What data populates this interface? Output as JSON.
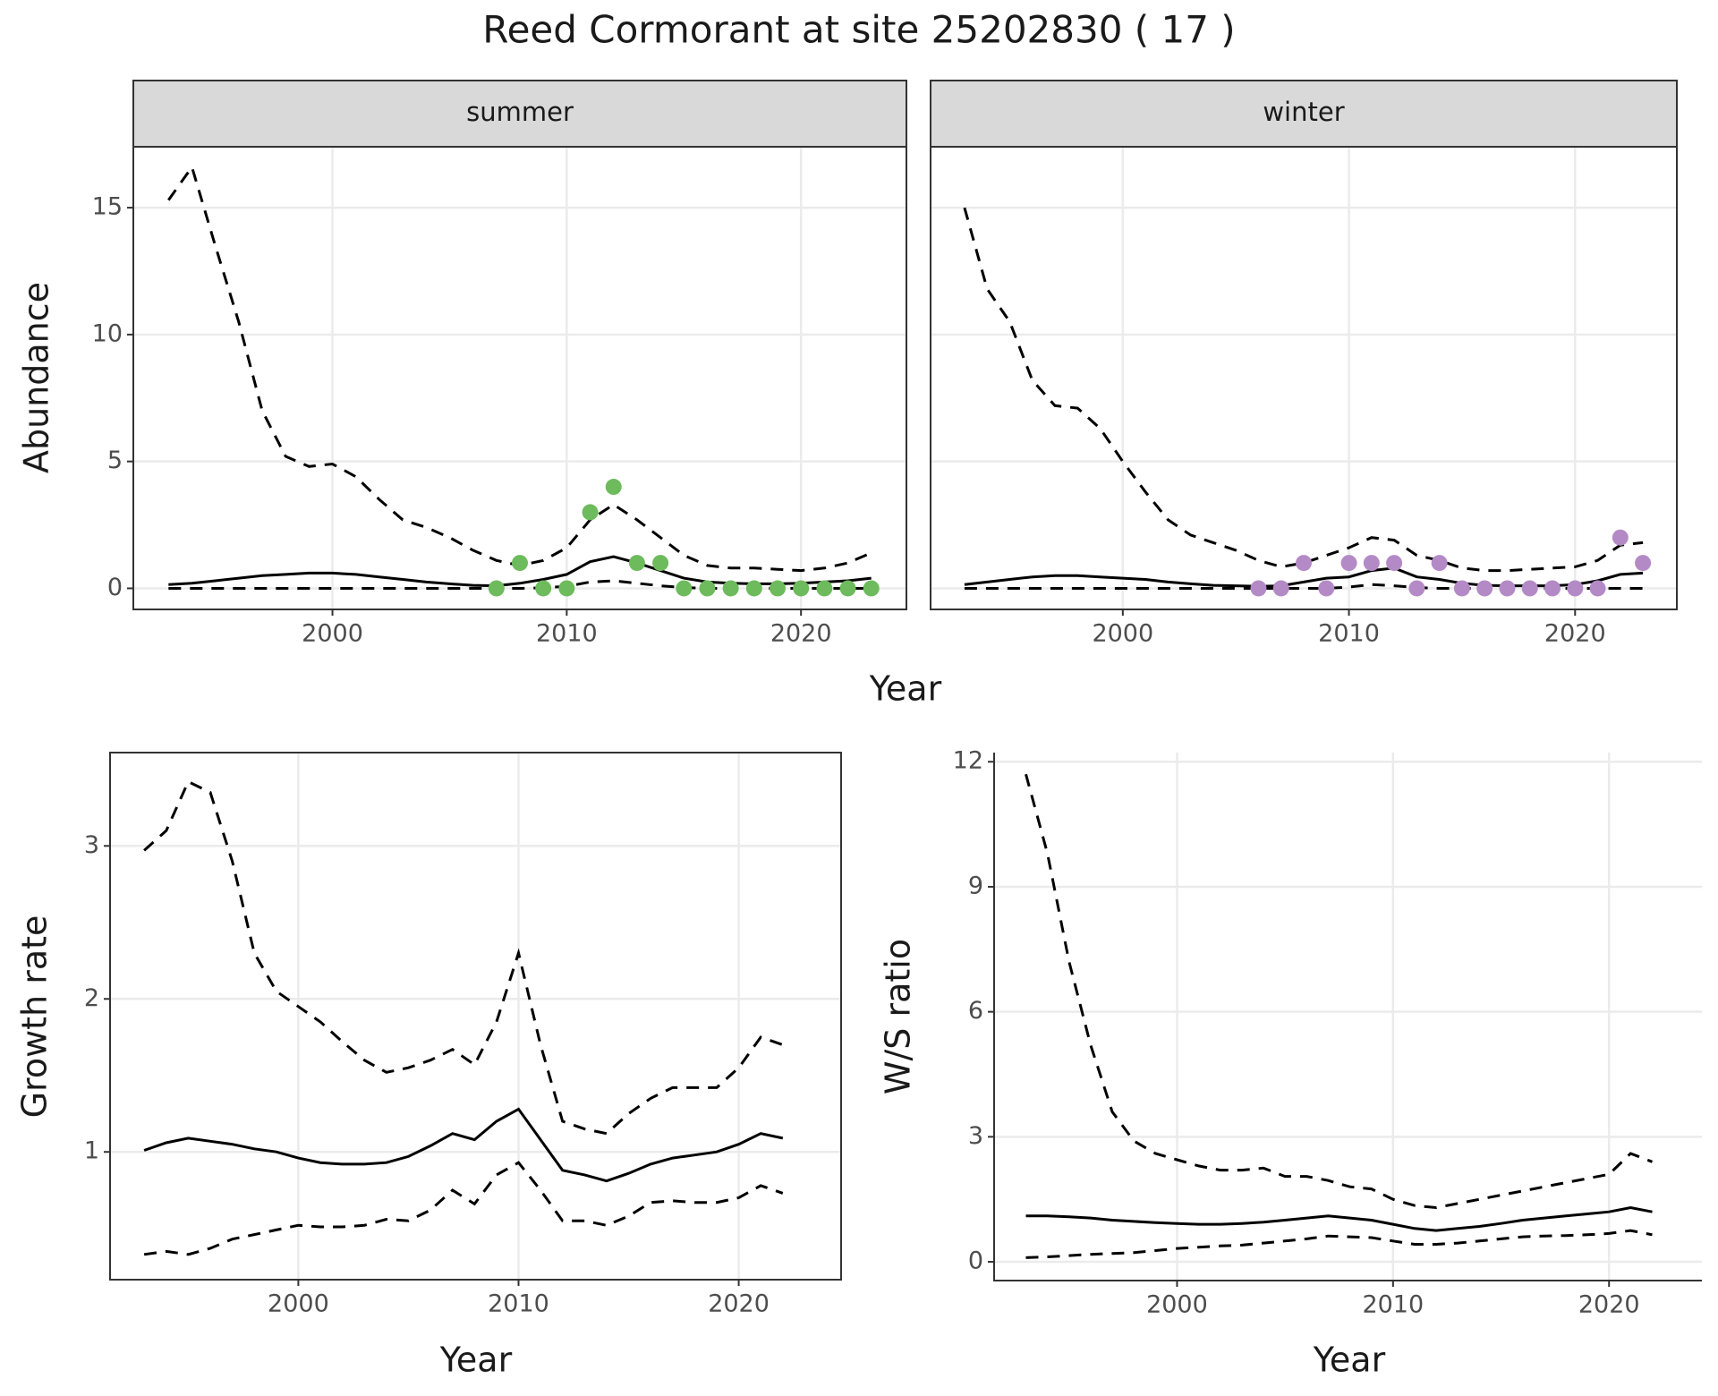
{
  "chart_data": [
    {
      "type": "line",
      "title": "Reed Cormorant at site 25202830 ( 17 )",
      "xlabel": "Year",
      "ylabel": "Abundance",
      "xlim": [
        1991.5,
        2024.5
      ],
      "ylim": [
        -0.83,
        17.4
      ],
      "xticks": [
        2000,
        2010,
        2020
      ],
      "yticks": [
        0,
        5,
        10,
        15
      ],
      "grid": true,
      "frame": "box",
      "facets": [
        {
          "strip": "summer",
          "x": [
            1993,
            1994,
            1995,
            1996,
            1997,
            1998,
            1999,
            2000,
            2001,
            2002,
            2003,
            2004,
            2005,
            2006,
            2007,
            2008,
            2009,
            2010,
            2011,
            2012,
            2013,
            2014,
            2015,
            2016,
            2017,
            2018,
            2019,
            2020,
            2021,
            2022,
            2023
          ],
          "series": [
            {
              "color": "#000000",
              "dash": true,
              "values": [
                15.3,
                16.6,
                13.5,
                10.5,
                7,
                5.2,
                4.8,
                4.9,
                4.4,
                3.5,
                2.7,
                2.4,
                2.0,
                1.5,
                1.1,
                0.9,
                1.1,
                1.6,
                2.7,
                3.3,
                2.7,
                2.0,
                1.3,
                0.9,
                0.8,
                0.8,
                0.75,
                0.7,
                0.8,
                1.0,
                1.4
              ]
            },
            {
              "color": "#000000",
              "dash": false,
              "values": [
                0.15,
                0.2,
                0.3,
                0.4,
                0.5,
                0.55,
                0.6,
                0.6,
                0.55,
                0.45,
                0.35,
                0.25,
                0.18,
                0.12,
                0.1,
                0.2,
                0.35,
                0.55,
                1.05,
                1.25,
                1.0,
                0.7,
                0.4,
                0.25,
                0.2,
                0.18,
                0.18,
                0.2,
                0.25,
                0.3,
                0.4
              ]
            },
            {
              "color": "#000000",
              "dash": true,
              "values": [
                0,
                0,
                0,
                0,
                0,
                0,
                0,
                0,
                0,
                0,
                0,
                0,
                0,
                0,
                0,
                0,
                0.02,
                0.08,
                0.25,
                0.3,
                0.2,
                0.1,
                0.03,
                0,
                0,
                0,
                0,
                0,
                0,
                0,
                0
              ]
            },
            {
              "type": "scatter",
              "color": "#6dbb5c",
              "values": [
                null,
                null,
                null,
                null,
                null,
                null,
                null,
                null,
                null,
                null,
                null,
                null,
                null,
                null,
                0,
                1,
                0,
                0,
                3,
                4,
                1,
                1,
                0,
                0,
                0,
                0,
                0,
                0,
                0,
                0,
                0
              ]
            }
          ]
        },
        {
          "strip": "winter",
          "x": [
            1993,
            1994,
            1995,
            1996,
            1997,
            1998,
            1999,
            2000,
            2001,
            2002,
            2003,
            2004,
            2005,
            2006,
            2007,
            2008,
            2009,
            2010,
            2011,
            2012,
            2013,
            2014,
            2015,
            2016,
            2017,
            2018,
            2019,
            2020,
            2021,
            2022,
            2023
          ],
          "series": [
            {
              "color": "#000000",
              "dash": true,
              "values": [
                15,
                11.8,
                10.5,
                8.2,
                7.2,
                7.1,
                6.3,
                5,
                3.8,
                2.7,
                2.1,
                1.8,
                1.5,
                1.1,
                0.85,
                1.0,
                1.3,
                1.6,
                2.0,
                1.9,
                1.3,
                1.1,
                0.8,
                0.7,
                0.7,
                0.75,
                0.8,
                0.85,
                1.1,
                1.7,
                1.8
              ]
            },
            {
              "color": "#000000",
              "dash": false,
              "values": [
                0.15,
                0.25,
                0.35,
                0.45,
                0.5,
                0.5,
                0.45,
                0.4,
                0.35,
                0.25,
                0.18,
                0.12,
                0.1,
                0.08,
                0.1,
                0.25,
                0.4,
                0.45,
                0.7,
                0.8,
                0.45,
                0.35,
                0.2,
                0.12,
                0.1,
                0.1,
                0.1,
                0.15,
                0.3,
                0.55,
                0.6
              ]
            },
            {
              "color": "#000000",
              "dash": true,
              "values": [
                0,
                0,
                0,
                0,
                0,
                0,
                0,
                0,
                0,
                0,
                0,
                0,
                0,
                0,
                0,
                0,
                0,
                0.05,
                0.15,
                0.1,
                0.03,
                0,
                0,
                0,
                0,
                0,
                0,
                0,
                0,
                0,
                0
              ]
            },
            {
              "type": "scatter",
              "color": "#b48ac6",
              "values": [
                null,
                null,
                null,
                null,
                null,
                null,
                null,
                null,
                null,
                null,
                null,
                null,
                null,
                0,
                0,
                1,
                0,
                1,
                1,
                1,
                0,
                1,
                0,
                0,
                0,
                0,
                0,
                0,
                0,
                2,
                1
              ]
            }
          ]
        }
      ]
    },
    {
      "type": "line",
      "xlabel": "Year",
      "ylabel": "Growth rate",
      "xlim": [
        1991.45,
        2024.65
      ],
      "ylim": [
        0.165,
        3.61
      ],
      "xticks": [
        2000,
        2010,
        2020
      ],
      "yticks": [
        1,
        2,
        3
      ],
      "grid": true,
      "frame": "box",
      "x": [
        1993,
        1994,
        1995,
        1996,
        1997,
        1998,
        1999,
        2000,
        2001,
        2002,
        2003,
        2004,
        2005,
        2006,
        2007,
        2008,
        2009,
        2010,
        2011,
        2012,
        2013,
        2014,
        2015,
        2016,
        2017,
        2018,
        2019,
        2020,
        2021,
        2022
      ],
      "series": [
        {
          "color": "#000000",
          "dash": true,
          "values": [
            2.97,
            3.1,
            3.42,
            3.35,
            2.9,
            2.3,
            2.05,
            1.95,
            1.85,
            1.72,
            1.6,
            1.52,
            1.55,
            1.6,
            1.67,
            1.57,
            1.85,
            2.3,
            1.7,
            1.2,
            1.15,
            1.12,
            1.25,
            1.35,
            1.42,
            1.42,
            1.42,
            1.55,
            1.75,
            1.7
          ]
        },
        {
          "color": "#000000",
          "dash": false,
          "values": [
            1.01,
            1.06,
            1.09,
            1.07,
            1.05,
            1.02,
            1.0,
            0.96,
            0.93,
            0.92,
            0.92,
            0.93,
            0.97,
            1.04,
            1.12,
            1.08,
            1.2,
            1.28,
            1.08,
            0.88,
            0.85,
            0.81,
            0.86,
            0.92,
            0.96,
            0.98,
            1.0,
            1.05,
            1.12,
            1.09
          ]
        },
        {
          "color": "#000000",
          "dash": true,
          "values": [
            0.33,
            0.35,
            0.33,
            0.37,
            0.43,
            0.46,
            0.49,
            0.52,
            0.51,
            0.51,
            0.52,
            0.56,
            0.55,
            0.62,
            0.75,
            0.66,
            0.85,
            0.93,
            0.75,
            0.55,
            0.55,
            0.52,
            0.58,
            0.67,
            0.68,
            0.67,
            0.67,
            0.7,
            0.78,
            0.73
          ]
        }
      ]
    },
    {
      "type": "line",
      "xlabel": "Year",
      "ylabel": "W/S ratio",
      "xlim": [
        1991.53,
        2024.3
      ],
      "ylim": [
        -0.45,
        12.22
      ],
      "xticks": [
        2000,
        2010,
        2020
      ],
      "yticks": [
        0,
        3,
        6,
        9,
        12
      ],
      "grid": true,
      "frame": "axes",
      "x": [
        1993,
        1994,
        1995,
        1996,
        1997,
        1998,
        1999,
        2000,
        2001,
        2002,
        2003,
        2004,
        2005,
        2006,
        2007,
        2008,
        2009,
        2010,
        2011,
        2012,
        2013,
        2014,
        2015,
        2016,
        2017,
        2018,
        2019,
        2020,
        2021,
        2022
      ],
      "series": [
        {
          "color": "#000000",
          "dash": true,
          "values": [
            11.7,
            9.8,
            7.2,
            5.2,
            3.6,
            2.9,
            2.6,
            2.45,
            2.3,
            2.2,
            2.2,
            2.25,
            2.05,
            2.05,
            1.95,
            1.8,
            1.75,
            1.5,
            1.35,
            1.3,
            1.4,
            1.5,
            1.6,
            1.7,
            1.8,
            1.9,
            2.0,
            2.1,
            2.6,
            2.4
          ]
        },
        {
          "color": "#000000",
          "dash": false,
          "values": [
            1.1,
            1.1,
            1.08,
            1.05,
            1.0,
            0.97,
            0.94,
            0.92,
            0.9,
            0.9,
            0.92,
            0.95,
            1.0,
            1.05,
            1.1,
            1.05,
            1.0,
            0.9,
            0.8,
            0.75,
            0.8,
            0.85,
            0.92,
            1.0,
            1.05,
            1.1,
            1.15,
            1.2,
            1.3,
            1.2
          ]
        },
        {
          "color": "#000000",
          "dash": true,
          "values": [
            0.1,
            0.12,
            0.15,
            0.18,
            0.2,
            0.22,
            0.27,
            0.32,
            0.35,
            0.38,
            0.4,
            0.45,
            0.5,
            0.55,
            0.62,
            0.6,
            0.58,
            0.5,
            0.42,
            0.42,
            0.45,
            0.5,
            0.55,
            0.6,
            0.62,
            0.63,
            0.65,
            0.68,
            0.75,
            0.65
          ]
        }
      ]
    }
  ]
}
